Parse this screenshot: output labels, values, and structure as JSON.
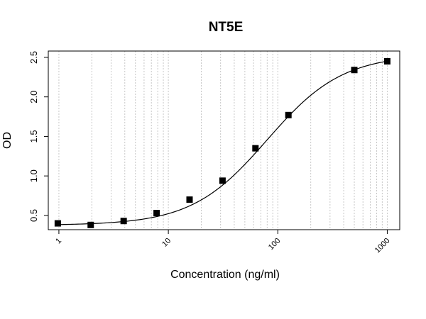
{
  "chart_data": {
    "type": "scatter",
    "title": "NT5E",
    "xlabel": "Concentration (ng/ml)",
    "ylabel": "OD",
    "x_scale": "log",
    "xlim": [
      0.8,
      1300
    ],
    "ylim": [
      0.32,
      2.58
    ],
    "x_ticks": [
      1,
      10,
      100,
      1000
    ],
    "x_tick_labels": [
      "1",
      "10",
      "100",
      "1000"
    ],
    "y_ticks": [
      0.5,
      1.0,
      1.5,
      2.0,
      2.5
    ],
    "y_tick_labels": [
      "0.5",
      "1.0",
      "1.5",
      "2.0",
      "2.5"
    ],
    "grid": "vertical dotted at log minor ticks",
    "marker": "filled-square",
    "series": [
      {
        "x": [
          0.977,
          1.953,
          3.906,
          7.813,
          15.625,
          31.25,
          62.5,
          125,
          500,
          1000
        ],
        "y": [
          0.4,
          0.38,
          0.43,
          0.53,
          0.7,
          0.94,
          1.35,
          1.77,
          2.34,
          2.45
        ]
      }
    ],
    "fit_curve": {
      "type": "4PL",
      "bottom": 0.376,
      "top": 2.538,
      "ec50": 80,
      "hill": 1.26
    }
  }
}
